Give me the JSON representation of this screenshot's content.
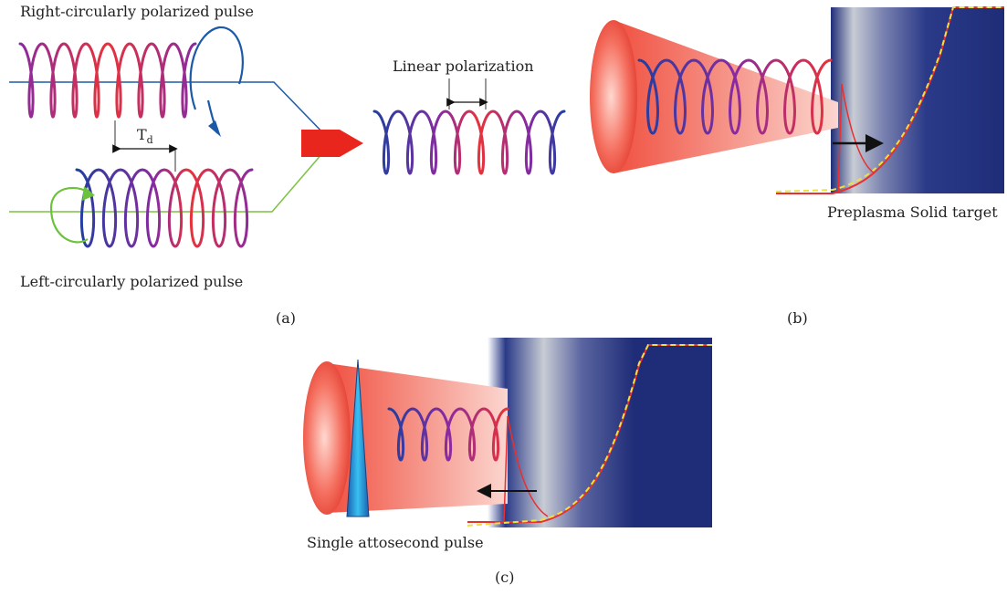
{
  "panel_a": {
    "top_label": "Right-circularly polarized pulse",
    "bottom_label": "Left-circularly polarized pulse",
    "delay_symbol": "T",
    "delay_subscript": "d",
    "caption": "(a)"
  },
  "middle": {
    "label": "Linear polarization"
  },
  "panel_b": {
    "target_label": "Preplasma Solid target",
    "caption": "(b)"
  },
  "panel_c": {
    "pulse_label": "Single attosecond pulse",
    "caption": "(c)"
  },
  "colors": {
    "helix_blue": "#1f3fa0",
    "helix_purple": "#8a2aa0",
    "helix_red": "#e8323a",
    "right_arrow": "#1c5aa8",
    "left_arrow": "#6cc23a",
    "beam_line_blue": "#1c5aa8",
    "beam_line_green": "#7cc043",
    "big_arrow": "#e8261e",
    "target_dark": "#1f2d78",
    "profile_yellow": "#f0e040",
    "profile_red": "#e83030",
    "atto_pulse": "#1fa8e0"
  }
}
